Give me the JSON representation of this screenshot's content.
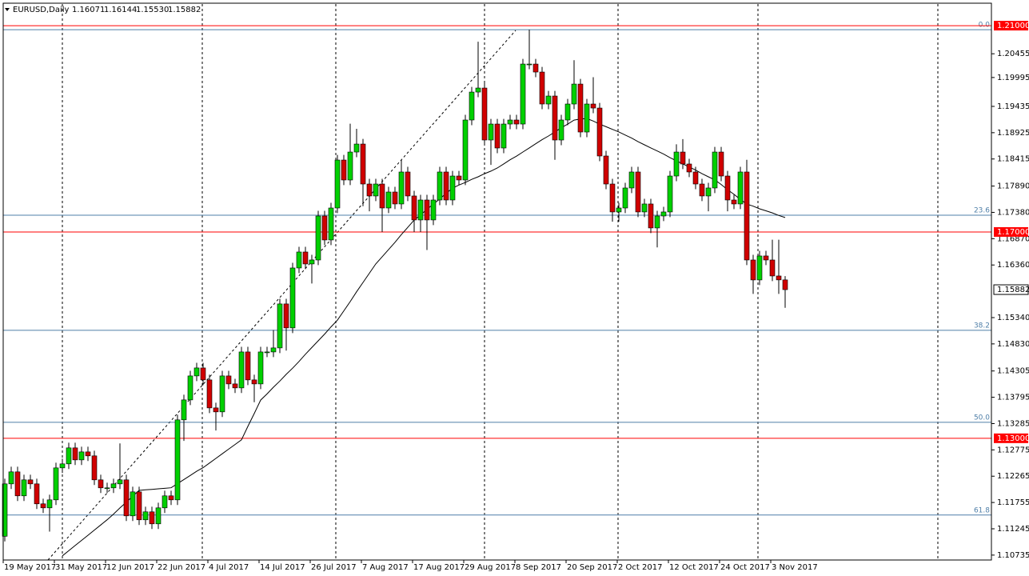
{
  "chart_data": {
    "type": "candlestick",
    "header": {
      "symbol": "EURUSD,Daily",
      "quote": [
        "1.16071",
        "1.16144",
        "1.15530",
        "1.15882"
      ]
    },
    "categories": [
      "19 May 2017",
      null,
      null,
      null,
      null,
      null,
      null,
      null,
      "31 May 2017",
      null,
      null,
      null,
      null,
      null,
      null,
      null,
      "12 Jun 2017",
      null,
      null,
      null,
      null,
      null,
      null,
      null,
      "22 Jun 2017",
      null,
      null,
      null,
      null,
      null,
      null,
      null,
      "4 Jul 2017",
      null,
      null,
      null,
      null,
      null,
      null,
      null,
      "14 Jul 2017",
      null,
      null,
      null,
      null,
      null,
      null,
      null,
      "26 Jul 2017",
      null,
      null,
      null,
      null,
      null,
      null,
      null,
      "7 Aug 2017",
      null,
      null,
      null,
      null,
      null,
      null,
      null,
      "17 Aug 2017",
      null,
      null,
      null,
      null,
      null,
      null,
      null,
      "29 Aug 2017",
      null,
      null,
      null,
      null,
      null,
      null,
      null,
      "8 Sep 2017",
      null,
      null,
      null,
      null,
      null,
      null,
      null,
      "20 Sep 2017",
      null,
      null,
      null,
      null,
      null,
      null,
      null,
      "2 Oct 2017",
      null,
      null,
      null,
      null,
      null,
      null,
      null,
      "12 Oct 2017",
      null,
      null,
      null,
      null,
      null,
      null,
      null,
      "24 Oct 2017",
      null,
      null,
      null,
      null,
      null,
      null,
      null,
      "3 Nov 2017",
      null,
      null
    ],
    "open": [
      1.111,
      1.12116,
      1.12349,
      1.11884,
      1.12194,
      1.12116,
      1.11729,
      1.11651,
      1.11806,
      1.12426,
      1.12504,
      1.12814,
      1.12581,
      1.12736,
      1.12659,
      1.12194,
      1.12039,
      1.12039,
      1.12116,
      1.12194,
      1.11496,
      1.11961,
      1.11419,
      1.11574,
      1.11341,
      1.11651,
      1.11884,
      1.11806,
      1.13357,
      1.13744,
      1.14209,
      1.14364,
      1.14132,
      1.13589,
      1.13512,
      1.14209,
      1.14054,
      1.13977,
      1.14674,
      1.14132,
      1.14054,
      1.14674,
      1.14674,
      1.14752,
      1.15605,
      1.1514,
      1.16302,
      1.16612,
      1.1638,
      1.16457,
      1.1731,
      1.16845,
      1.17465,
      1.18395,
      1.18008,
      1.1855,
      1.18705,
      1.1793,
      1.17698,
      1.1793,
      1.17465,
      1.17775,
      1.17543,
      1.18163,
      1.17698,
      1.17233,
      1.1762,
      1.17233,
      1.1762,
      1.18163,
      1.1762,
      1.18085,
      1.18008,
      1.19171,
      1.19713,
      1.19791,
      1.18783,
      1.19093,
      1.18628,
      1.19093,
      1.19171,
      1.19093,
      1.20256,
      1.20256,
      1.20101,
      1.19481,
      1.19636,
      1.18783,
      1.19171,
      1.19481,
      1.19868,
      1.18938,
      1.19481,
      1.19403,
      1.18473,
      1.1793,
      1.17388,
      1.17465,
      1.17853,
      1.18163,
      1.17388,
      1.17543,
      1.17078,
      1.1731,
      1.17388,
      1.18085,
      1.1855,
      1.18318,
      1.18163,
      1.1793,
      1.17698,
      1.17853,
      1.1855,
      1.18085,
      1.1762,
      1.17543,
      1.18163,
      1.16457,
      1.1607,
      1.16535,
      1.16457,
      1.16147,
      1.16071
    ],
    "high": [
      1.12216,
      1.12449,
      1.12449,
      1.12294,
      1.12294,
      1.12216,
      1.11829,
      1.11906,
      1.12526,
      1.12604,
      1.12914,
      1.12914,
      1.12836,
      1.12836,
      1.12759,
      1.12294,
      1.12139,
      1.12216,
      1.129,
      1.12294,
      1.12061,
      1.12061,
      1.11674,
      1.11674,
      1.11751,
      1.11984,
      1.11984,
      1.13457,
      1.13844,
      1.14309,
      1.14464,
      1.14464,
      1.14232,
      1.13689,
      1.14309,
      1.14309,
      1.14154,
      1.14774,
      1.14774,
      1.14232,
      1.14774,
      1.14774,
      1.151,
      1.15705,
      1.15705,
      1.16402,
      1.16712,
      1.16712,
      1.16557,
      1.1741,
      1.1741,
      1.17565,
      1.18495,
      1.18495,
      1.191,
      1.19,
      1.18805,
      1.1803,
      1.1803,
      1.1803,
      1.17875,
      1.17875,
      1.184,
      1.18263,
      1.17798,
      1.1772,
      1.1772,
      1.1772,
      1.18263,
      1.18263,
      1.18185,
      1.18185,
      1.19271,
      1.19813,
      1.2069,
      1.19891,
      1.19193,
      1.19193,
      1.19193,
      1.19271,
      1.19271,
      1.20356,
      1.20922,
      1.20356,
      1.20201,
      1.19736,
      1.19736,
      1.19271,
      1.19581,
      1.2033,
      1.19968,
      1.19581,
      1.2,
      1.19503,
      1.18573,
      1.1803,
      1.17565,
      1.17953,
      1.18263,
      1.18263,
      1.17643,
      1.17643,
      1.1741,
      1.17488,
      1.18185,
      1.187,
      1.188,
      1.18418,
      1.18263,
      1.1803,
      1.17953,
      1.1865,
      1.1865,
      1.18185,
      1.1772,
      1.18263,
      1.184,
      1.16557,
      1.16635,
      1.16635,
      1.1685,
      1.1685,
      1.16144
    ],
    "low": [
      1.11,
      1.12016,
      1.11784,
      1.11784,
      1.12016,
      1.11629,
      1.11551,
      1.1119,
      1.11706,
      1.12326,
      1.12404,
      1.12481,
      1.12481,
      1.12559,
      1.12094,
      1.11939,
      1.11939,
      1.11939,
      1.12016,
      1.11396,
      1.11396,
      1.11319,
      1.11319,
      1.11241,
      1.11241,
      1.11551,
      1.11706,
      1.11706,
      1.1295,
      1.13644,
      1.14109,
      1.14032,
      1.13489,
      1.1315,
      1.13412,
      1.13954,
      1.13877,
      1.13877,
      1.14032,
      1.137,
      1.13954,
      1.14574,
      1.14574,
      1.14652,
      1.147,
      1.1504,
      1.16202,
      1.1628,
      1.16,
      1.16357,
      1.16745,
      1.16745,
      1.17365,
      1.17908,
      1.17908,
      1.1845,
      1.175,
      1.174,
      1.17598,
      1.17,
      1.17365,
      1.17443,
      1.17443,
      1.17598,
      1.17,
      1.17,
      1.1665,
      1.17133,
      1.1752,
      1.1752,
      1.1752,
      1.17908,
      1.17908,
      1.19071,
      1.19613,
      1.18683,
      1.183,
      1.18528,
      1.18528,
      1.18993,
      1.18993,
      1.18993,
      1.20156,
      1.20001,
      1.19381,
      1.19381,
      1.184,
      1.18683,
      1.19071,
      1.19381,
      1.18838,
      1.18838,
      1.19303,
      1.18373,
      1.1783,
      1.172,
      1.172,
      1.17365,
      1.17753,
      1.17288,
      1.17288,
      1.16978,
      1.167,
      1.1721,
      1.17288,
      1.17985,
      1.18218,
      1.18063,
      1.1783,
      1.17598,
      1.174,
      1.17753,
      1.17985,
      1.174,
      1.17443,
      1.17443,
      1.16357,
      1.158,
      1.1597,
      1.16357,
      1.16047,
      1.158,
      1.1553
    ],
    "close": [
      1.12116,
      1.12349,
      1.11884,
      1.12194,
      1.12116,
      1.11729,
      1.11651,
      1.11806,
      1.12426,
      1.12504,
      1.12814,
      1.12581,
      1.12736,
      1.12659,
      1.12194,
      1.12039,
      1.12039,
      1.12116,
      1.12194,
      1.11496,
      1.11961,
      1.11419,
      1.11574,
      1.11341,
      1.11651,
      1.11884,
      1.11806,
      1.13357,
      1.13744,
      1.14209,
      1.14364,
      1.14132,
      1.13589,
      1.13512,
      1.14209,
      1.14054,
      1.13977,
      1.14674,
      1.14132,
      1.14054,
      1.14674,
      1.14674,
      1.14752,
      1.15605,
      1.1514,
      1.16302,
      1.16612,
      1.1638,
      1.16457,
      1.1731,
      1.16845,
      1.17465,
      1.18395,
      1.18008,
      1.1855,
      1.18705,
      1.1793,
      1.17698,
      1.1793,
      1.17465,
      1.17775,
      1.17543,
      1.18163,
      1.17698,
      1.17233,
      1.1762,
      1.17233,
      1.1762,
      1.18163,
      1.1762,
      1.18085,
      1.18008,
      1.19171,
      1.19713,
      1.19791,
      1.18783,
      1.19093,
      1.18628,
      1.19093,
      1.19171,
      1.19093,
      1.20256,
      1.20256,
      1.20101,
      1.19481,
      1.19636,
      1.18783,
      1.19171,
      1.19481,
      1.19868,
      1.18938,
      1.19481,
      1.19403,
      1.18473,
      1.1793,
      1.17388,
      1.17465,
      1.17853,
      1.18163,
      1.17388,
      1.17543,
      1.17078,
      1.1731,
      1.17388,
      1.18085,
      1.1855,
      1.18318,
      1.18163,
      1.1793,
      1.17698,
      1.17853,
      1.1855,
      1.18085,
      1.1762,
      1.17543,
      1.18163,
      1.16457,
      1.1607,
      1.16535,
      1.16457,
      1.16147,
      1.16071,
      1.15882
    ],
    "ma": [
      null,
      null,
      null,
      null,
      null,
      null,
      null,
      null,
      null,
      1.1072,
      1.1082,
      1.1092,
      1.1102,
      1.1112,
      1.1122,
      1.1132,
      1.1142,
      1.1153,
      1.1165,
      1.1176,
      1.1188,
      1.1199,
      1.12,
      1.1201,
      1.1202,
      1.1203,
      1.1204,
      1.1212,
      1.122,
      1.1228,
      1.1236,
      1.1243,
      1.1252,
      1.1261,
      1.127,
      1.1279,
      1.1288,
      1.1297,
      1.1323,
      1.1348,
      1.1374,
      1.1386,
      1.1399,
      1.1411,
      1.1424,
      1.1436,
      1.1449,
      1.1463,
      1.1476,
      1.1489,
      1.1502,
      1.1516,
      1.1529,
      1.1547,
      1.1565,
      1.1584,
      1.1602,
      1.162,
      1.1638,
      1.1652,
      1.1666,
      1.168,
      1.1695,
      1.1709,
      1.1723,
      1.1733,
      1.1744,
      1.1754,
      1.1764,
      1.1775,
      1.1785,
      1.1791,
      1.1796,
      1.1802,
      1.1807,
      1.1813,
      1.1818,
      1.1824,
      1.1832,
      1.184,
      1.1847,
      1.1855,
      1.1863,
      1.1871,
      1.1879,
      1.1886,
      1.1894,
      1.1902,
      1.1909,
      1.1917,
      1.1919,
      1.192,
      1.1915,
      1.1909,
      1.1904,
      1.1899,
      1.1894,
      1.1888,
      1.1882,
      1.1875,
      1.1869,
      1.1863,
      1.1857,
      1.1851,
      1.1844,
      1.1838,
      1.1832,
      1.1826,
      1.182,
      1.1813,
      1.1807,
      1.1801,
      1.1792,
      1.1782,
      1.1773,
      1.1763,
      1.1754,
      1.175,
      1.1745,
      1.1741,
      1.1737,
      1.1732,
      1.1728
    ],
    "up_color": "#00d000",
    "down_color": "#d00000",
    "ma_color": "#000000",
    "ylim": [
      1.1064,
      1.2142
    ],
    "yticks": [
      {
        "value": 1.20455,
        "label": "1.20455"
      },
      {
        "value": 1.19995,
        "label": "1.19995"
      },
      {
        "value": 1.19435,
        "label": "1.19435"
      },
      {
        "value": 1.18925,
        "label": "1.18925"
      },
      {
        "value": 1.18415,
        "label": "1.18415"
      },
      {
        "value": 1.1789,
        "label": "1.17890"
      },
      {
        "value": 1.1738,
        "label": "1.17380"
      },
      {
        "value": 1.1687,
        "label": "1.16870"
      },
      {
        "value": 1.1636,
        "label": "1.16360"
      },
      {
        "value": 1.1534,
        "label": "1.15340"
      },
      {
        "value": 1.1483,
        "label": "1.14830"
      },
      {
        "value": 1.14305,
        "label": "1.14305"
      },
      {
        "value": 1.13795,
        "label": "1.13795"
      },
      {
        "value": 1.13285,
        "label": "1.13285"
      },
      {
        "value": 1.12775,
        "label": "1.12775"
      },
      {
        "value": 1.12265,
        "label": "1.12265"
      },
      {
        "value": 1.11755,
        "label": "1.11755"
      },
      {
        "value": 1.11245,
        "label": "1.11245"
      },
      {
        "value": 1.10735,
        "label": "1.10735"
      }
    ],
    "levels": [
      {
        "value": 1.21,
        "label": "1.21000"
      },
      {
        "value": 1.17,
        "label": "1.17000"
      },
      {
        "value": 1.13,
        "label": "1.13000"
      }
    ],
    "level_color": "#ff0000",
    "fib_levels": [
      {
        "value": 1.20922,
        "label": "0.0"
      },
      {
        "value": 1.17326,
        "label": "23.6"
      },
      {
        "value": 1.15093,
        "label": "38.2"
      },
      {
        "value": 1.1331,
        "label": "50.0"
      },
      {
        "value": 1.11512,
        "label": "61.8"
      }
    ],
    "fib_color": "#4f7fa8"
  }
}
